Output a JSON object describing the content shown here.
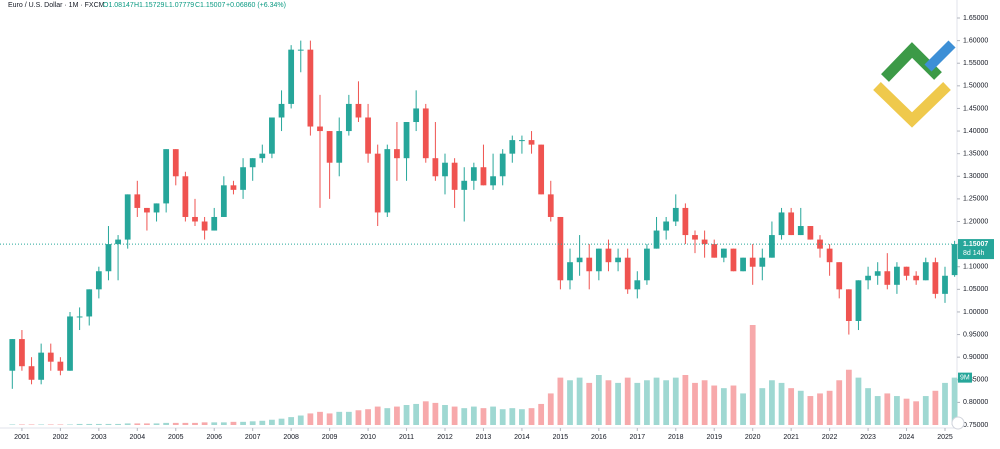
{
  "chart_data": {
    "type": "candlestick",
    "header": {
      "symbol": "Euro / U.S. Dollar · 1M · FXCM",
      "ohlc_text": [
        "O1.08147",
        "H1.15729",
        "L1.07779",
        "C1.15007"
      ],
      "change_text": "+0.06860 (+6.34%)"
    },
    "last_price_label": "1.15007",
    "countdown": "8d 14h",
    "volume_label": "9M",
    "x": [
      2000.75,
      2001,
      2001.25,
      2001.5,
      2001.75,
      2002,
      2002.25,
      2002.5,
      2002.75,
      2003,
      2003.25,
      2003.5,
      2003.75,
      2004,
      2004.25,
      2004.5,
      2004.75,
      2005,
      2005.25,
      2005.5,
      2005.75,
      2006,
      2006.25,
      2006.5,
      2006.75,
      2007,
      2007.25,
      2007.5,
      2007.75,
      2008,
      2008.25,
      2008.5,
      2008.75,
      2009,
      2009.25,
      2009.5,
      2009.75,
      2010,
      2010.25,
      2010.5,
      2010.75,
      2011,
      2011.25,
      2011.5,
      2011.75,
      2012,
      2012.25,
      2012.5,
      2012.75,
      2013,
      2013.25,
      2013.5,
      2013.75,
      2014,
      2014.25,
      2014.5,
      2014.75,
      2015,
      2015.25,
      2015.5,
      2015.75,
      2016,
      2016.25,
      2016.5,
      2016.75,
      2017,
      2017.25,
      2017.5,
      2017.75,
      2018,
      2018.25,
      2018.5,
      2018.75,
      2019,
      2019.25,
      2019.5,
      2019.75,
      2020,
      2020.25,
      2020.5,
      2020.75,
      2021,
      2021.25,
      2021.5,
      2021.75,
      2022,
      2022.25,
      2022.5,
      2022.75,
      2023,
      2023.25,
      2023.5,
      2023.75,
      2024,
      2024.25,
      2024.5,
      2024.75,
      2025,
      2025.25
    ],
    "open": [
      0.87,
      0.94,
      0.88,
      0.85,
      0.91,
      0.89,
      0.87,
      0.99,
      0.99,
      1.05,
      1.09,
      1.15,
      1.16,
      1.26,
      1.23,
      1.22,
      1.24,
      1.36,
      1.3,
      1.21,
      1.2,
      1.18,
      1.21,
      1.28,
      1.27,
      1.32,
      1.34,
      1.35,
      1.43,
      1.46,
      1.58,
      1.58,
      1.41,
      1.4,
      1.33,
      1.4,
      1.46,
      1.43,
      1.35,
      1.22,
      1.36,
      1.34,
      1.42,
      1.45,
      1.34,
      1.3,
      1.33,
      1.27,
      1.29,
      1.32,
      1.28,
      1.3,
      1.35,
      1.38,
      1.38,
      1.37,
      1.26,
      1.21,
      1.07,
      1.11,
      1.12,
      1.09,
      1.14,
      1.11,
      1.12,
      1.05,
      1.07,
      1.14,
      1.18,
      1.2,
      1.23,
      1.17,
      1.16,
      1.15,
      1.12,
      1.14,
      1.09,
      1.12,
      1.1,
      1.12,
      1.17,
      1.22,
      1.17,
      1.19,
      1.16,
      1.14,
      1.11,
      1.05,
      0.98,
      1.07,
      1.08,
      1.09,
      1.06,
      1.1,
      1.08,
      1.07,
      1.11,
      1.04,
      1.08147
    ],
    "high": [
      0.94,
      0.96,
      0.9,
      0.93,
      0.93,
      0.9,
      1.0,
      1.01,
      1.05,
      1.1,
      1.19,
      1.17,
      1.26,
      1.29,
      1.23,
      1.24,
      1.36,
      1.36,
      1.31,
      1.25,
      1.21,
      1.23,
      1.3,
      1.29,
      1.34,
      1.34,
      1.37,
      1.43,
      1.49,
      1.59,
      1.6,
      1.6,
      1.48,
      1.4,
      1.43,
      1.48,
      1.51,
      1.46,
      1.37,
      1.37,
      1.42,
      1.42,
      1.49,
      1.46,
      1.42,
      1.35,
      1.34,
      1.32,
      1.33,
      1.37,
      1.35,
      1.36,
      1.39,
      1.39,
      1.4,
      1.37,
      1.29,
      1.21,
      1.14,
      1.17,
      1.15,
      1.14,
      1.16,
      1.14,
      1.14,
      1.09,
      1.15,
      1.21,
      1.21,
      1.26,
      1.24,
      1.18,
      1.18,
      1.16,
      1.14,
      1.14,
      1.12,
      1.15,
      1.14,
      1.2,
      1.23,
      1.23,
      1.23,
      1.19,
      1.17,
      1.15,
      1.11,
      1.05,
      1.07,
      1.1,
      1.11,
      1.13,
      1.11,
      1.1,
      1.09,
      1.12,
      1.12,
      1.1,
      1.15729
    ],
    "low": [
      0.83,
      0.87,
      0.84,
      0.84,
      0.87,
      0.86,
      0.87,
      0.96,
      0.97,
      1.03,
      1.07,
      1.07,
      1.14,
      1.21,
      1.18,
      1.2,
      1.22,
      1.28,
      1.2,
      1.19,
      1.16,
      1.18,
      1.21,
      1.26,
      1.25,
      1.29,
      1.33,
      1.34,
      1.4,
      1.45,
      1.53,
      1.39,
      1.23,
      1.25,
      1.3,
      1.39,
      1.42,
      1.33,
      1.19,
      1.21,
      1.29,
      1.29,
      1.4,
      1.33,
      1.29,
      1.26,
      1.23,
      1.2,
      1.27,
      1.28,
      1.27,
      1.28,
      1.33,
      1.35,
      1.35,
      1.26,
      1.2,
      1.05,
      1.05,
      1.08,
      1.05,
      1.07,
      1.09,
      1.09,
      1.04,
      1.03,
      1.06,
      1.14,
      1.16,
      1.19,
      1.15,
      1.13,
      1.12,
      1.12,
      1.11,
      1.09,
      1.09,
      1.06,
      1.07,
      1.12,
      1.16,
      1.17,
      1.17,
      1.16,
      1.12,
      1.08,
      1.03,
      0.95,
      0.96,
      1.05,
      1.06,
      1.05,
      1.04,
      1.07,
      1.06,
      1.07,
      1.03,
      1.02,
      1.07779
    ],
    "close": [
      0.94,
      0.88,
      0.85,
      0.91,
      0.89,
      0.87,
      0.99,
      0.99,
      1.05,
      1.09,
      1.15,
      1.16,
      1.26,
      1.23,
      1.22,
      1.24,
      1.36,
      1.3,
      1.21,
      1.2,
      1.18,
      1.21,
      1.28,
      1.27,
      1.32,
      1.34,
      1.35,
      1.43,
      1.46,
      1.58,
      1.58,
      1.41,
      1.4,
      1.33,
      1.4,
      1.46,
      1.43,
      1.35,
      1.22,
      1.36,
      1.34,
      1.42,
      1.45,
      1.34,
      1.3,
      1.33,
      1.27,
      1.29,
      1.32,
      1.28,
      1.3,
      1.35,
      1.38,
      1.38,
      1.37,
      1.26,
      1.21,
      1.07,
      1.11,
      1.12,
      1.09,
      1.14,
      1.11,
      1.12,
      1.05,
      1.07,
      1.14,
      1.18,
      1.2,
      1.23,
      1.17,
      1.16,
      1.15,
      1.12,
      1.14,
      1.09,
      1.12,
      1.1,
      1.12,
      1.17,
      1.22,
      1.17,
      1.19,
      1.16,
      1.14,
      1.11,
      1.05,
      0.98,
      1.07,
      1.08,
      1.09,
      1.06,
      1.1,
      1.08,
      1.07,
      1.11,
      1.04,
      1.08,
      1.15007
    ],
    "volume": [
      0.1,
      0.1,
      0.1,
      0.1,
      0.1,
      0.1,
      0.1,
      0.2,
      0.2,
      0.2,
      0.2,
      0.2,
      0.3,
      0.3,
      0.3,
      0.3,
      0.4,
      0.4,
      0.4,
      0.4,
      0.5,
      0.5,
      0.5,
      0.6,
      0.6,
      0.7,
      0.8,
      1,
      1.2,
      1.5,
      1.8,
      2.2,
      2.5,
      2.2,
      2.5,
      2.5,
      2.8,
      3,
      3.5,
      3.2,
      3.5,
      3.8,
      4,
      4.5,
      4.2,
      3.8,
      3.5,
      3.2,
      3.5,
      3.2,
      3.5,
      3,
      3.2,
      3,
      3.2,
      4,
      6,
      9,
      8.5,
      9,
      8,
      9.5,
      8.5,
      8,
      9,
      8,
      8.5,
      9,
      8.5,
      9,
      9.5,
      8,
      8.5,
      7.5,
      7,
      7.5,
      6,
      19,
      7,
      8.5,
      8,
      7,
      6.5,
      5.5,
      6,
      6.5,
      8.5,
      10.5,
      9,
      7,
      5.5,
      6,
      5.5,
      5,
      4.5,
      5.5,
      6.5,
      8,
      9
    ],
    "up_color": "#26a69a",
    "down_color": "#ef5350",
    "up_volume_color": "#9fd8d2",
    "down_volume_color": "#f7a9ab",
    "xlim": [
      2000.43,
      2025.26
    ],
    "xticks": [
      2001,
      2002,
      2003,
      2004,
      2005,
      2006,
      2007,
      2008,
      2009,
      2010,
      2011,
      2012,
      2013,
      2014,
      2015,
      2016,
      2017,
      2018,
      2019,
      2020,
      2021,
      2022,
      2023,
      2024,
      2025
    ],
    "ylim": [
      0.75,
      1.65
    ],
    "yticks": [
      {
        "value": 0.75,
        "label": "0.75000"
      },
      {
        "value": 0.8,
        "label": "0.80000"
      },
      {
        "value": 0.85,
        "label": "0.85000"
      },
      {
        "value": 0.9,
        "label": "0.90000"
      },
      {
        "value": 0.95,
        "label": "0.95000"
      },
      {
        "value": 1,
        "label": "1.00000"
      },
      {
        "value": 1.05,
        "label": "1.05000"
      },
      {
        "value": 1.1,
        "label": "1.10000"
      },
      {
        "value": 1.15,
        "label": "1.15000"
      },
      {
        "value": 1.2,
        "label": "1.20000"
      },
      {
        "value": 1.25,
        "label": "1.25000"
      },
      {
        "value": 1.3,
        "label": "1.30000"
      },
      {
        "value": 1.35,
        "label": "1.35000"
      },
      {
        "value": 1.4,
        "label": "1.40000"
      },
      {
        "value": 1.45,
        "label": "1.45000"
      },
      {
        "value": 1.5,
        "label": "1.50000"
      },
      {
        "value": 1.55,
        "label": "1.55000"
      },
      {
        "value": 1.6,
        "label": "1.60000"
      },
      {
        "value": 1.65,
        "label": "1.65000"
      }
    ],
    "grid": false
  }
}
